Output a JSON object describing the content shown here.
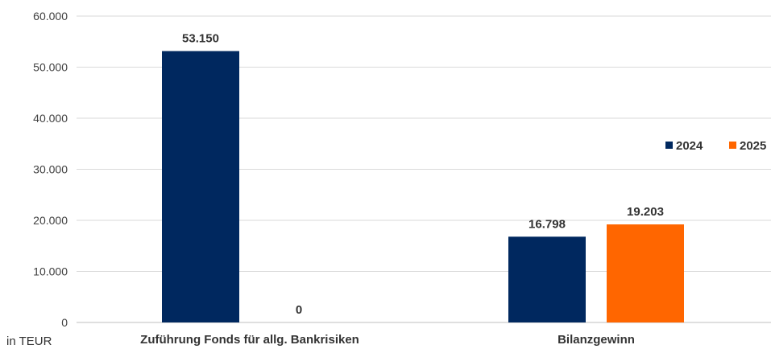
{
  "chart_data": {
    "type": "bar",
    "categories": [
      "Zuführung Fonds für allg. Bankrisiken",
      "Bilanzgewinn"
    ],
    "series": [
      {
        "name": "2024",
        "values": [
          53150,
          16798
        ],
        "labels": [
          "53.150",
          "16.798"
        ],
        "color": "#00285F"
      },
      {
        "name": "2025",
        "values": [
          0,
          19203
        ],
        "labels": [
          "0",
          "19.203"
        ],
        "color": "#FF6600"
      }
    ],
    "ylim": [
      0,
      60000
    ],
    "y_ticks": [
      0,
      10000,
      20000,
      30000,
      40000,
      50000,
      60000
    ],
    "y_tick_labels": [
      "0",
      "10.000",
      "20.000",
      "30.000",
      "40.000",
      "50.000",
      "60.000"
    ],
    "unit_label": "in TEUR",
    "grid": true,
    "legend_position": "right"
  }
}
